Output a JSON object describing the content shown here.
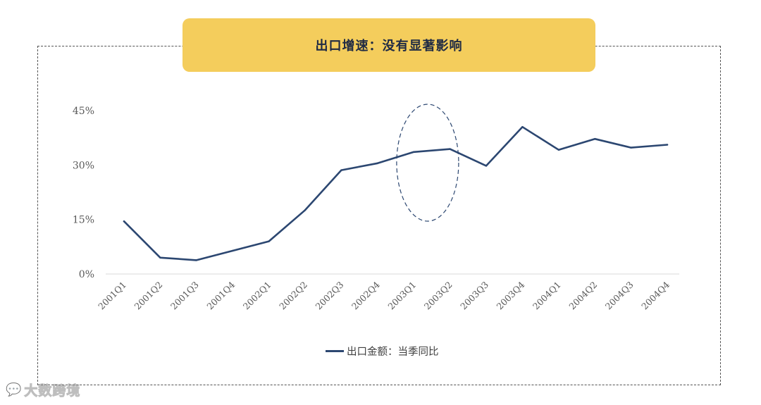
{
  "title": "出口增速：没有显著影响",
  "watermark": "大数跨境",
  "watermark_icon": "speech-bubble-logo-icon",
  "colors": {
    "banner": "#f4cd5c",
    "line": "#2c4771",
    "axis": "#d9d9d9"
  },
  "chart_data": {
    "type": "line",
    "categories": [
      "2001Q1",
      "2001Q2",
      "2001Q3",
      "2001Q4",
      "2002Q1",
      "2002Q2",
      "2002Q3",
      "2002Q4",
      "2003Q1",
      "2003Q2",
      "2003Q3",
      "2003Q4",
      "2004Q1",
      "2004Q2",
      "2004Q3",
      "2004Q4"
    ],
    "series": [
      {
        "name": "出口金额：当季同比",
        "values": [
          14.5,
          4.5,
          3.8,
          6.4,
          9.0,
          17.6,
          28.6,
          30.5,
          33.6,
          34.4,
          29.8,
          40.5,
          34.2,
          37.2,
          34.8,
          35.6
        ]
      }
    ],
    "ylim": [
      0,
      45
    ],
    "yticks": [
      0,
      15,
      30,
      45
    ],
    "ytick_labels": [
      "0%",
      "15%",
      "30%",
      "45%"
    ],
    "highlight": {
      "shape": "dashed-ellipse",
      "categories": [
        "2003Q1",
        "2003Q2"
      ]
    },
    "legend_position": "bottom-center",
    "grid": false
  }
}
